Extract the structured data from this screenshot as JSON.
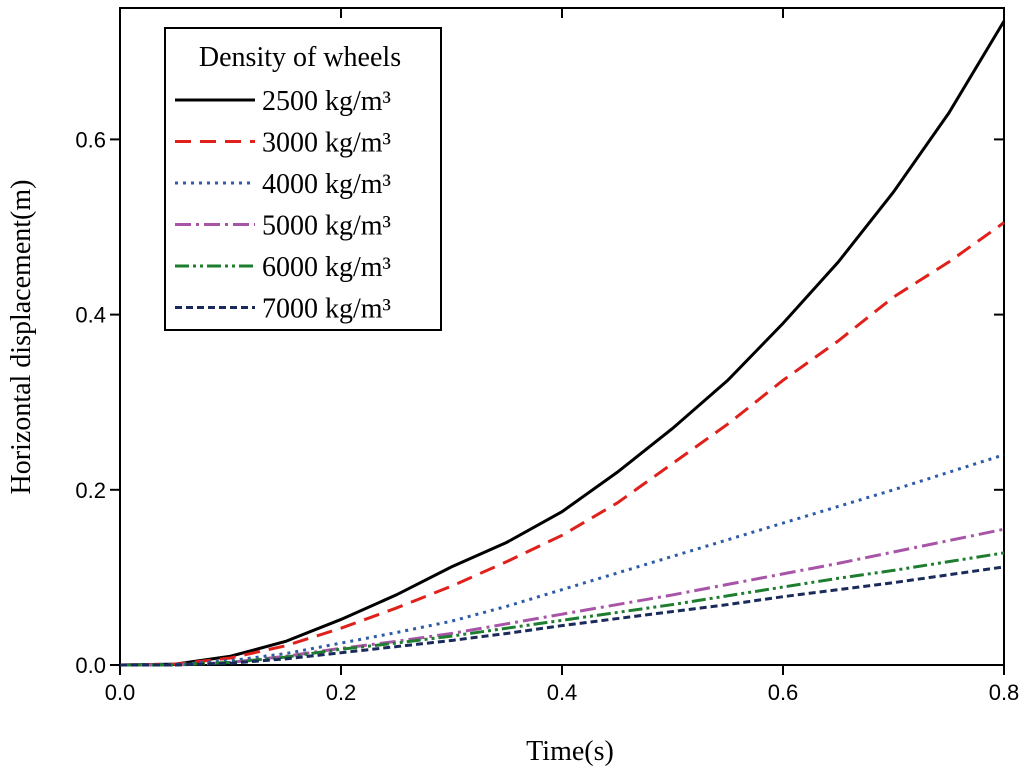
{
  "chart_data": {
    "type": "line",
    "x_label": "Time(s)",
    "y_label": "Horizontal displacement(m)",
    "legend_title": "Density of wheels",
    "legend_position": "upper-left",
    "x": [
      0,
      0.05,
      0.1,
      0.15,
      0.2,
      0.25,
      0.3,
      0.35,
      0.4,
      0.45,
      0.5,
      0.55,
      0.6,
      0.65,
      0.7,
      0.75,
      0.8
    ],
    "xlim": [
      0,
      0.8
    ],
    "ylim": [
      0,
      0.75
    ],
    "xticks": [
      {
        "value": 0,
        "label": "0.0"
      },
      0.2,
      0.4,
      0.6,
      0.8
    ],
    "yticks": [
      {
        "value": 0,
        "label": "0.0"
      },
      0.2,
      0.4,
      0.6
    ],
    "series": [
      {
        "name": "2500 kg/m³",
        "color": "#000000",
        "dash": "solid",
        "values": [
          0,
          0.001,
          0.01,
          0.027,
          0.052,
          0.08,
          0.112,
          0.14,
          0.175,
          0.22,
          0.27,
          0.325,
          0.39,
          0.46,
          0.54,
          0.63,
          0.735
        ]
      },
      {
        "name": "3000 kg/m³",
        "color": "#e0201b",
        "dash": "dash",
        "values": [
          0,
          0.001,
          0.008,
          0.022,
          0.042,
          0.065,
          0.09,
          0.118,
          0.148,
          0.185,
          0.23,
          0.275,
          0.325,
          0.37,
          0.42,
          0.46,
          0.505
        ]
      },
      {
        "name": "4000 kg/m³",
        "color": "#2d5ba8",
        "dash": "dot",
        "values": [
          0,
          0.0005,
          0.005,
          0.013,
          0.025,
          0.037,
          0.05,
          0.067,
          0.086,
          0.105,
          0.124,
          0.143,
          0.162,
          0.181,
          0.2,
          0.22,
          0.24
        ]
      },
      {
        "name": "5000 kg/m³",
        "color": "#a855a8",
        "dash": "dash-dot",
        "values": [
          0,
          0,
          0.003,
          0.01,
          0.019,
          0.027,
          0.036,
          0.047,
          0.058,
          0.069,
          0.08,
          0.092,
          0.104,
          0.116,
          0.129,
          0.142,
          0.155
        ]
      },
      {
        "name": "6000 kg/m³",
        "color": "#1e7d2e",
        "dash": "dash-dot-dot",
        "values": [
          0,
          0,
          0.003,
          0.009,
          0.018,
          0.025,
          0.033,
          0.042,
          0.051,
          0.06,
          0.069,
          0.079,
          0.089,
          0.099,
          0.108,
          0.118,
          0.128
        ]
      },
      {
        "name": "7000 kg/m³",
        "color": "#1a2a5a",
        "dash": "short-dash",
        "values": [
          0,
          0,
          0.002,
          0.007,
          0.014,
          0.021,
          0.028,
          0.036,
          0.045,
          0.053,
          0.061,
          0.069,
          0.078,
          0.086,
          0.094,
          0.103,
          0.112
        ]
      }
    ]
  }
}
